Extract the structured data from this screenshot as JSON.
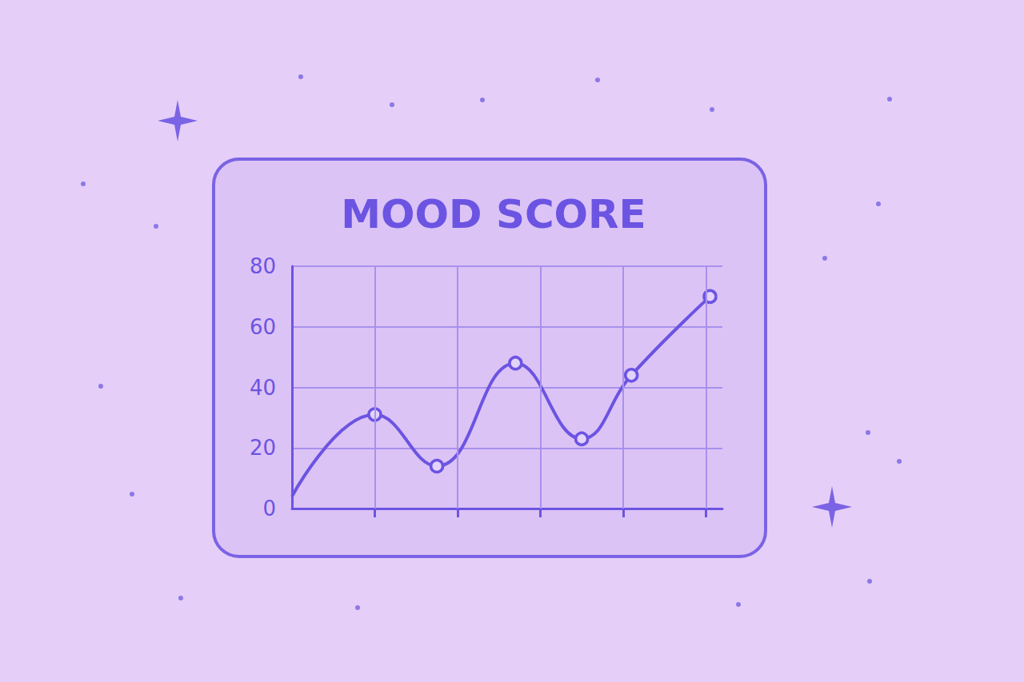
{
  "chart_data": {
    "type": "line",
    "title": "MOOD SCORE",
    "x": [
      0,
      1,
      1.75,
      2.7,
      3.5,
      4.1,
      5.05
    ],
    "values": [
      4,
      31,
      14,
      48,
      23,
      44,
      70
    ],
    "color": "#6b54e2",
    "xlim": [
      0,
      5.2
    ],
    "xticks": [
      1,
      2,
      3,
      4,
      5
    ],
    "ylim": [
      0,
      80
    ],
    "yticks": [
      0,
      20,
      40,
      60,
      80
    ],
    "grid": true,
    "tick_labels": "y",
    "marker": "circle",
    "line_style": "solid"
  }
}
